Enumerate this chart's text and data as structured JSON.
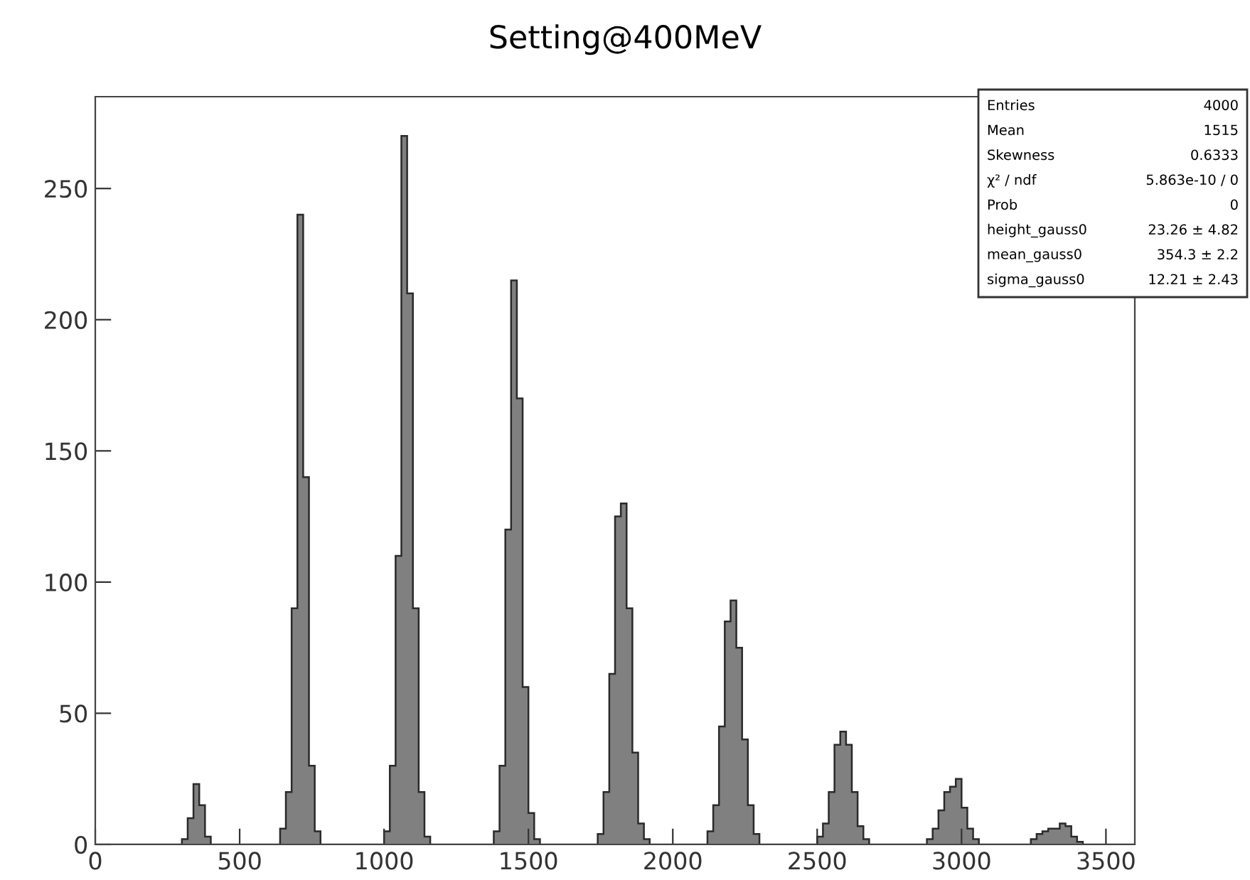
{
  "chart_data": {
    "type": "histogram",
    "title": "Setting@400MeV",
    "bins": [
      0,
      20,
      40,
      60,
      80,
      100,
      120,
      140,
      160,
      180,
      200,
      220,
      240,
      260,
      280,
      300,
      320,
      340,
      360,
      380,
      400,
      420,
      440,
      460,
      480,
      500,
      520,
      540,
      560,
      580,
      600,
      620,
      640,
      660,
      680,
      700,
      720,
      740,
      760,
      780,
      800,
      820,
      840,
      860,
      880,
      900,
      920,
      940,
      960,
      980,
      1000,
      1020,
      1040,
      1060,
      1080,
      1100,
      1120,
      1140,
      1160,
      1180,
      1200,
      1220,
      1240,
      1260,
      1280,
      1300,
      1320,
      1340,
      1360,
      1380,
      1400,
      1420,
      1440,
      1460,
      1480,
      1500,
      1520,
      1540,
      1560,
      1580,
      1600,
      1620,
      1640,
      1660,
      1680,
      1700,
      1720,
      1740,
      1760,
      1780,
      1800,
      1820,
      1840,
      1860,
      1880,
      1900,
      1920,
      1940,
      1960,
      1980,
      2000,
      2020,
      2040,
      2060,
      2080,
      2100,
      2120,
      2140,
      2160,
      2180,
      2200,
      2220,
      2240,
      2260,
      2280,
      2300,
      2320,
      2340,
      2360,
      2380,
      2400,
      2420,
      2440,
      2460,
      2480,
      2500,
      2520,
      2540,
      2560,
      2580,
      2600,
      2620,
      2640,
      2660,
      2680,
      2700,
      2720,
      2740,
      2760,
      2780,
      2800,
      2820,
      2840,
      2860,
      2880,
      2900,
      2920,
      2940,
      2960,
      2980,
      3000,
      3020,
      3040,
      3060,
      3080,
      3100,
      3120,
      3140,
      3160,
      3180,
      3200,
      3220,
      3240,
      3260,
      3280,
      3300,
      3320,
      3340,
      3360,
      3380,
      3400,
      3420,
      3440,
      3460,
      3480,
      3500,
      3520,
      3540,
      3560,
      3580,
      3600
    ],
    "values": [
      0,
      0,
      0,
      0,
      0,
      0,
      0,
      0,
      0,
      0,
      0,
      0,
      0,
      0,
      0,
      2,
      10,
      23,
      15,
      3,
      0,
      0,
      0,
      0,
      0,
      0,
      0,
      0,
      0,
      0,
      0,
      0,
      6,
      20,
      90,
      240,
      140,
      30,
      5,
      0,
      0,
      0,
      0,
      0,
      0,
      0,
      0,
      0,
      0,
      0,
      5,
      30,
      110,
      270,
      210,
      90,
      20,
      3,
      0,
      0,
      0,
      0,
      0,
      0,
      0,
      0,
      0,
      0,
      0,
      5,
      30,
      120,
      215,
      170,
      60,
      12,
      2,
      0,
      0,
      0,
      0,
      0,
      0,
      0,
      0,
      0,
      0,
      4,
      20,
      65,
      125,
      130,
      90,
      35,
      8,
      2,
      0,
      0,
      0,
      0,
      0,
      0,
      0,
      0,
      0,
      0,
      5,
      15,
      45,
      85,
      93,
      75,
      40,
      15,
      4,
      0,
      0,
      0,
      0,
      0,
      0,
      0,
      0,
      0,
      0,
      3,
      8,
      20,
      38,
      43,
      38,
      20,
      7,
      2,
      0,
      0,
      0,
      0,
      0,
      0,
      0,
      0,
      0,
      0,
      2,
      6,
      13,
      20,
      22,
      25,
      14,
      6,
      2,
      0,
      0,
      0,
      0,
      0,
      0,
      0,
      0,
      0,
      2,
      4,
      5,
      6,
      6,
      8,
      7,
      3,
      1,
      0,
      0,
      0,
      0,
      0,
      0,
      0,
      0,
      0
    ],
    "color": "#808080",
    "xlim": [
      0,
      3600
    ],
    "xticks": [
      0,
      500,
      1000,
      1500,
      2000,
      2500,
      3000,
      3500
    ],
    "ylim": [
      0,
      285
    ],
    "yticks": [
      0,
      50,
      100,
      150,
      200,
      250
    ],
    "annotations": [
      "Entries",
      "4000",
      "Mean",
      "1515",
      "Skewness",
      "0.6333",
      "χ² / ndf",
      "5.863e-10 / 0",
      "Prob",
      "0",
      "height_gauss0",
      "23.26 ± 4.82",
      "mean_gauss0",
      "354.3 ± 2.2",
      "sigma_gauss0",
      "12.21 ± 2.43"
    ]
  }
}
